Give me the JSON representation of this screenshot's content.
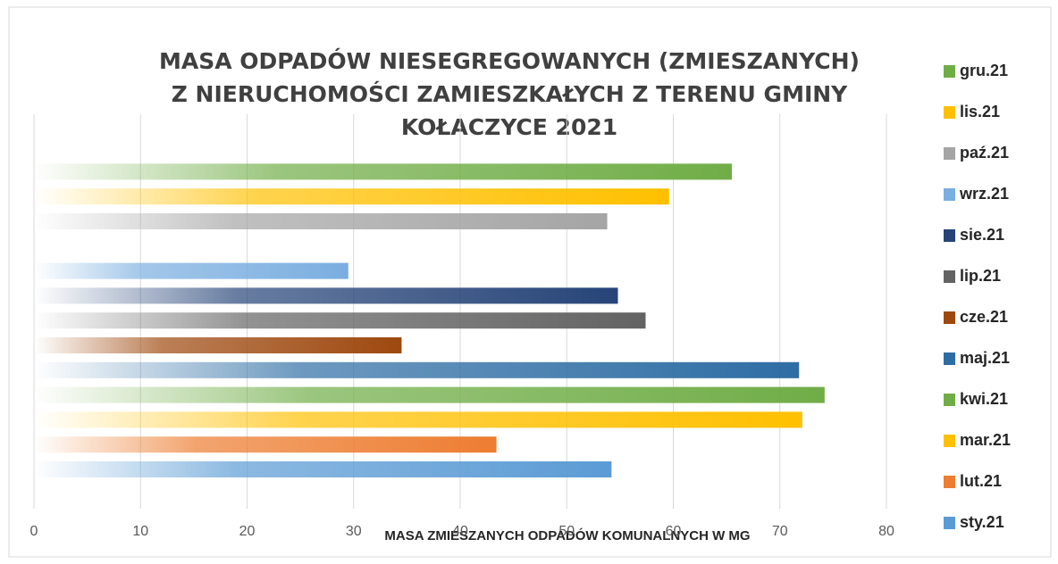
{
  "chart_data": {
    "type": "hbar",
    "title": [
      "MASA ODPADÓW NIESEGREGOWANYCH (ZMIESZANYCH)",
      "Z NIERUCHOMOŚCI ZAMIESZKAŁYCH Z TERENU GMINY",
      "KOŁACZYCE 2021"
    ],
    "x_label": "MASA ZMIESZANYCH ODPADÓW KOMUNALNYCH W MG",
    "categories": [
      "sty.21",
      "lut.21",
      "mar.21",
      "kwi.21",
      "maj.21",
      "cze.21",
      "lip.21",
      "sie.21",
      "wrz.21",
      "paź.21",
      "lis.21",
      "gru.21"
    ],
    "values": [
      54.2,
      43.4,
      72.1,
      74.2,
      71.8,
      34.5,
      57.4,
      54.8,
      29.5,
      53.8,
      59.6,
      65.5
    ],
    "colors": [
      "#5b9bd5",
      "#ed7d31",
      "#ffc000",
      "#70ad47",
      "#2e6da4",
      "#9e480e",
      "#636363",
      "#264478",
      "#7aaee0",
      "#a5a5a5",
      "#ffc000",
      "#70ad47"
    ],
    "xlim": [
      0,
      80
    ],
    "xticks": [
      0,
      10,
      20,
      30,
      40,
      50,
      60,
      70,
      80
    ],
    "grid": true
  }
}
